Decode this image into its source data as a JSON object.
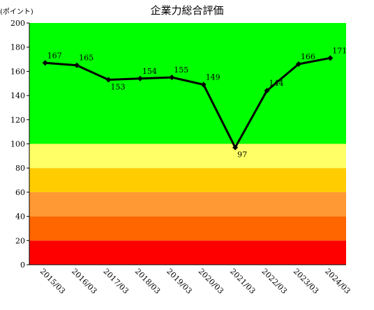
{
  "chart_data": {
    "type": "line",
    "title": "企業力総合評価",
    "unit_label": "(ポイント)",
    "categories": [
      "2015/03",
      "2016/03",
      "2017/03",
      "2018/03",
      "2019/03",
      "2020/03",
      "2021/03",
      "2022/03",
      "2023/03",
      "2024/03"
    ],
    "series": [
      {
        "values": [
          167,
          165,
          153,
          154,
          155,
          149,
          97,
          144,
          166,
          171
        ],
        "color": "#000000"
      }
    ],
    "ylim": [
      0,
      200
    ],
    "yticks": [
      0,
      20,
      40,
      60,
      80,
      100,
      120,
      140,
      160,
      180,
      200
    ],
    "grid": false,
    "bands": [
      {
        "from": 0,
        "to": 20,
        "color": "#ff0000"
      },
      {
        "from": 20,
        "to": 40,
        "color": "#ff6600"
      },
      {
        "from": 40,
        "to": 60,
        "color": "#ff9933"
      },
      {
        "from": 60,
        "to": 80,
        "color": "#ffcc00"
      },
      {
        "from": 80,
        "to": 100,
        "color": "#ffff66"
      },
      {
        "from": 100,
        "to": 200,
        "color": "#00ff00"
      }
    ]
  }
}
